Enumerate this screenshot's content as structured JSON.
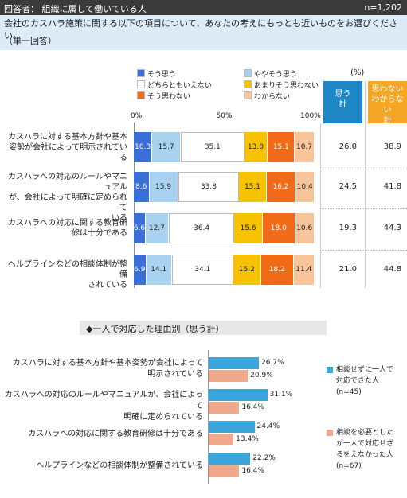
{
  "header": {
    "respondents": "回答者： 組織に属して働いている人",
    "n": "n=1,202"
  },
  "question": {
    "text": "会社のカスハラ施策に関する以下の項目について、あなたの考えにもっとも近いものをお選びください。",
    "subtext": "（単一回答）"
  },
  "legend": [
    {
      "label": "そう思う",
      "color": "#3b6fd8"
    },
    {
      "label": "ややそう思う",
      "color": "#a9d2f0"
    },
    {
      "label": "どちらともいえない",
      "color": "#ffffff"
    },
    {
      "label": "あまりそう思わない",
      "color": "#f7c300"
    },
    {
      "label": "そう思わない",
      "color": "#f06a18"
    },
    {
      "label": "わからない",
      "color": "#f8c59a"
    }
  ],
  "unit": "(%)",
  "col_headers": {
    "c1": "思う\n計",
    "c2": "思わない\nわからない\n計"
  },
  "axis_ticks": [
    "0%",
    "50%",
    "100%"
  ],
  "chart_data": [
    {
      "type": "bar",
      "stacked": true,
      "orientation": "horizontal",
      "categories": [
        "カスハラに対する基本方針や基本姿勢が会社によって明示されている",
        "カスハラへの対応のルールやマニュアルが、会社によって明確に定められている",
        "カスハラへの対応に関する教育研修は十分である",
        "ヘルプラインなどの相談体制が整備されている"
      ],
      "series": [
        {
          "name": "そう思う",
          "values": [
            10.3,
            8.6,
            6.6,
            6.9
          ]
        },
        {
          "name": "ややそう思う",
          "values": [
            15.7,
            15.9,
            12.7,
            14.1
          ]
        },
        {
          "name": "どちらともいえない",
          "values": [
            35.1,
            33.8,
            36.4,
            34.1
          ]
        },
        {
          "name": "あまりそう思わない",
          "values": [
            13.0,
            15.1,
            15.6,
            15.2
          ]
        },
        {
          "name": "そう思わない",
          "values": [
            15.1,
            16.2,
            18.0,
            18.2
          ]
        },
        {
          "name": "わからない",
          "values": [
            10.7,
            10.4,
            10.6,
            11.4
          ]
        }
      ],
      "totals_agree": [
        "26.0",
        "24.5",
        "19.3",
        "21.0"
      ],
      "totals_disagree": [
        "38.9",
        "41.8",
        "44.3",
        "44.8"
      ],
      "xlim": [
        0,
        100
      ]
    },
    {
      "type": "bar",
      "orientation": "horizontal",
      "title": "◆一人で対応した理由別（思う計）",
      "categories": [
        "カスハラに対する基本方針や基本姿勢が会社によって明示されている",
        "カスハラへの対応のルールやマニュアルが、会社によって明確に定められている",
        "カスハラへの対応に関する教育研修は十分である",
        "ヘルプラインなどの相談体制が整備されている"
      ],
      "series": [
        {
          "name": "相談せずに一人で対応できた人(n=45)",
          "color": "#3aa6dc",
          "values": [
            26.7,
            31.1,
            24.4,
            22.2
          ]
        },
        {
          "name": "相談を必要としたが一人で対応せざるをえなかった人(n=67)",
          "color": "#f0a98a",
          "values": [
            20.9,
            16.4,
            13.4,
            16.4
          ]
        }
      ]
    }
  ],
  "section2": {
    "labels": [
      [
        "カスハラに対する基本方針や基本姿勢が会社によって",
        "明示されている"
      ],
      [
        "カスハラへの対応のルールやマニュアルが、会社によって",
        "明確に定められている"
      ],
      [
        "カスハラへの対応に関する教育研修は十分である"
      ],
      [
        "ヘルプラインなどの相談体制が整備されている"
      ]
    ],
    "legend1": [
      "相談せずに一人で",
      "対応できた人",
      "(n=45)"
    ],
    "legend2": [
      "相談を必要とした",
      "が一人で対応せざ",
      "るをえなかった人",
      "(n=67)"
    ]
  },
  "row_labels": [
    [
      "カスハラに対する基本方針や基本",
      "姿勢が会社によって明示されてい",
      "る"
    ],
    [
      "カスハラへの対応のルールやマニュアル",
      "が、会社によって明確に定められて",
      "いる"
    ],
    [
      "カスハラへの対応に関する教育研",
      "修は十分である"
    ],
    [
      "ヘルプラインなどの相談体制が整備",
      "されている"
    ]
  ]
}
